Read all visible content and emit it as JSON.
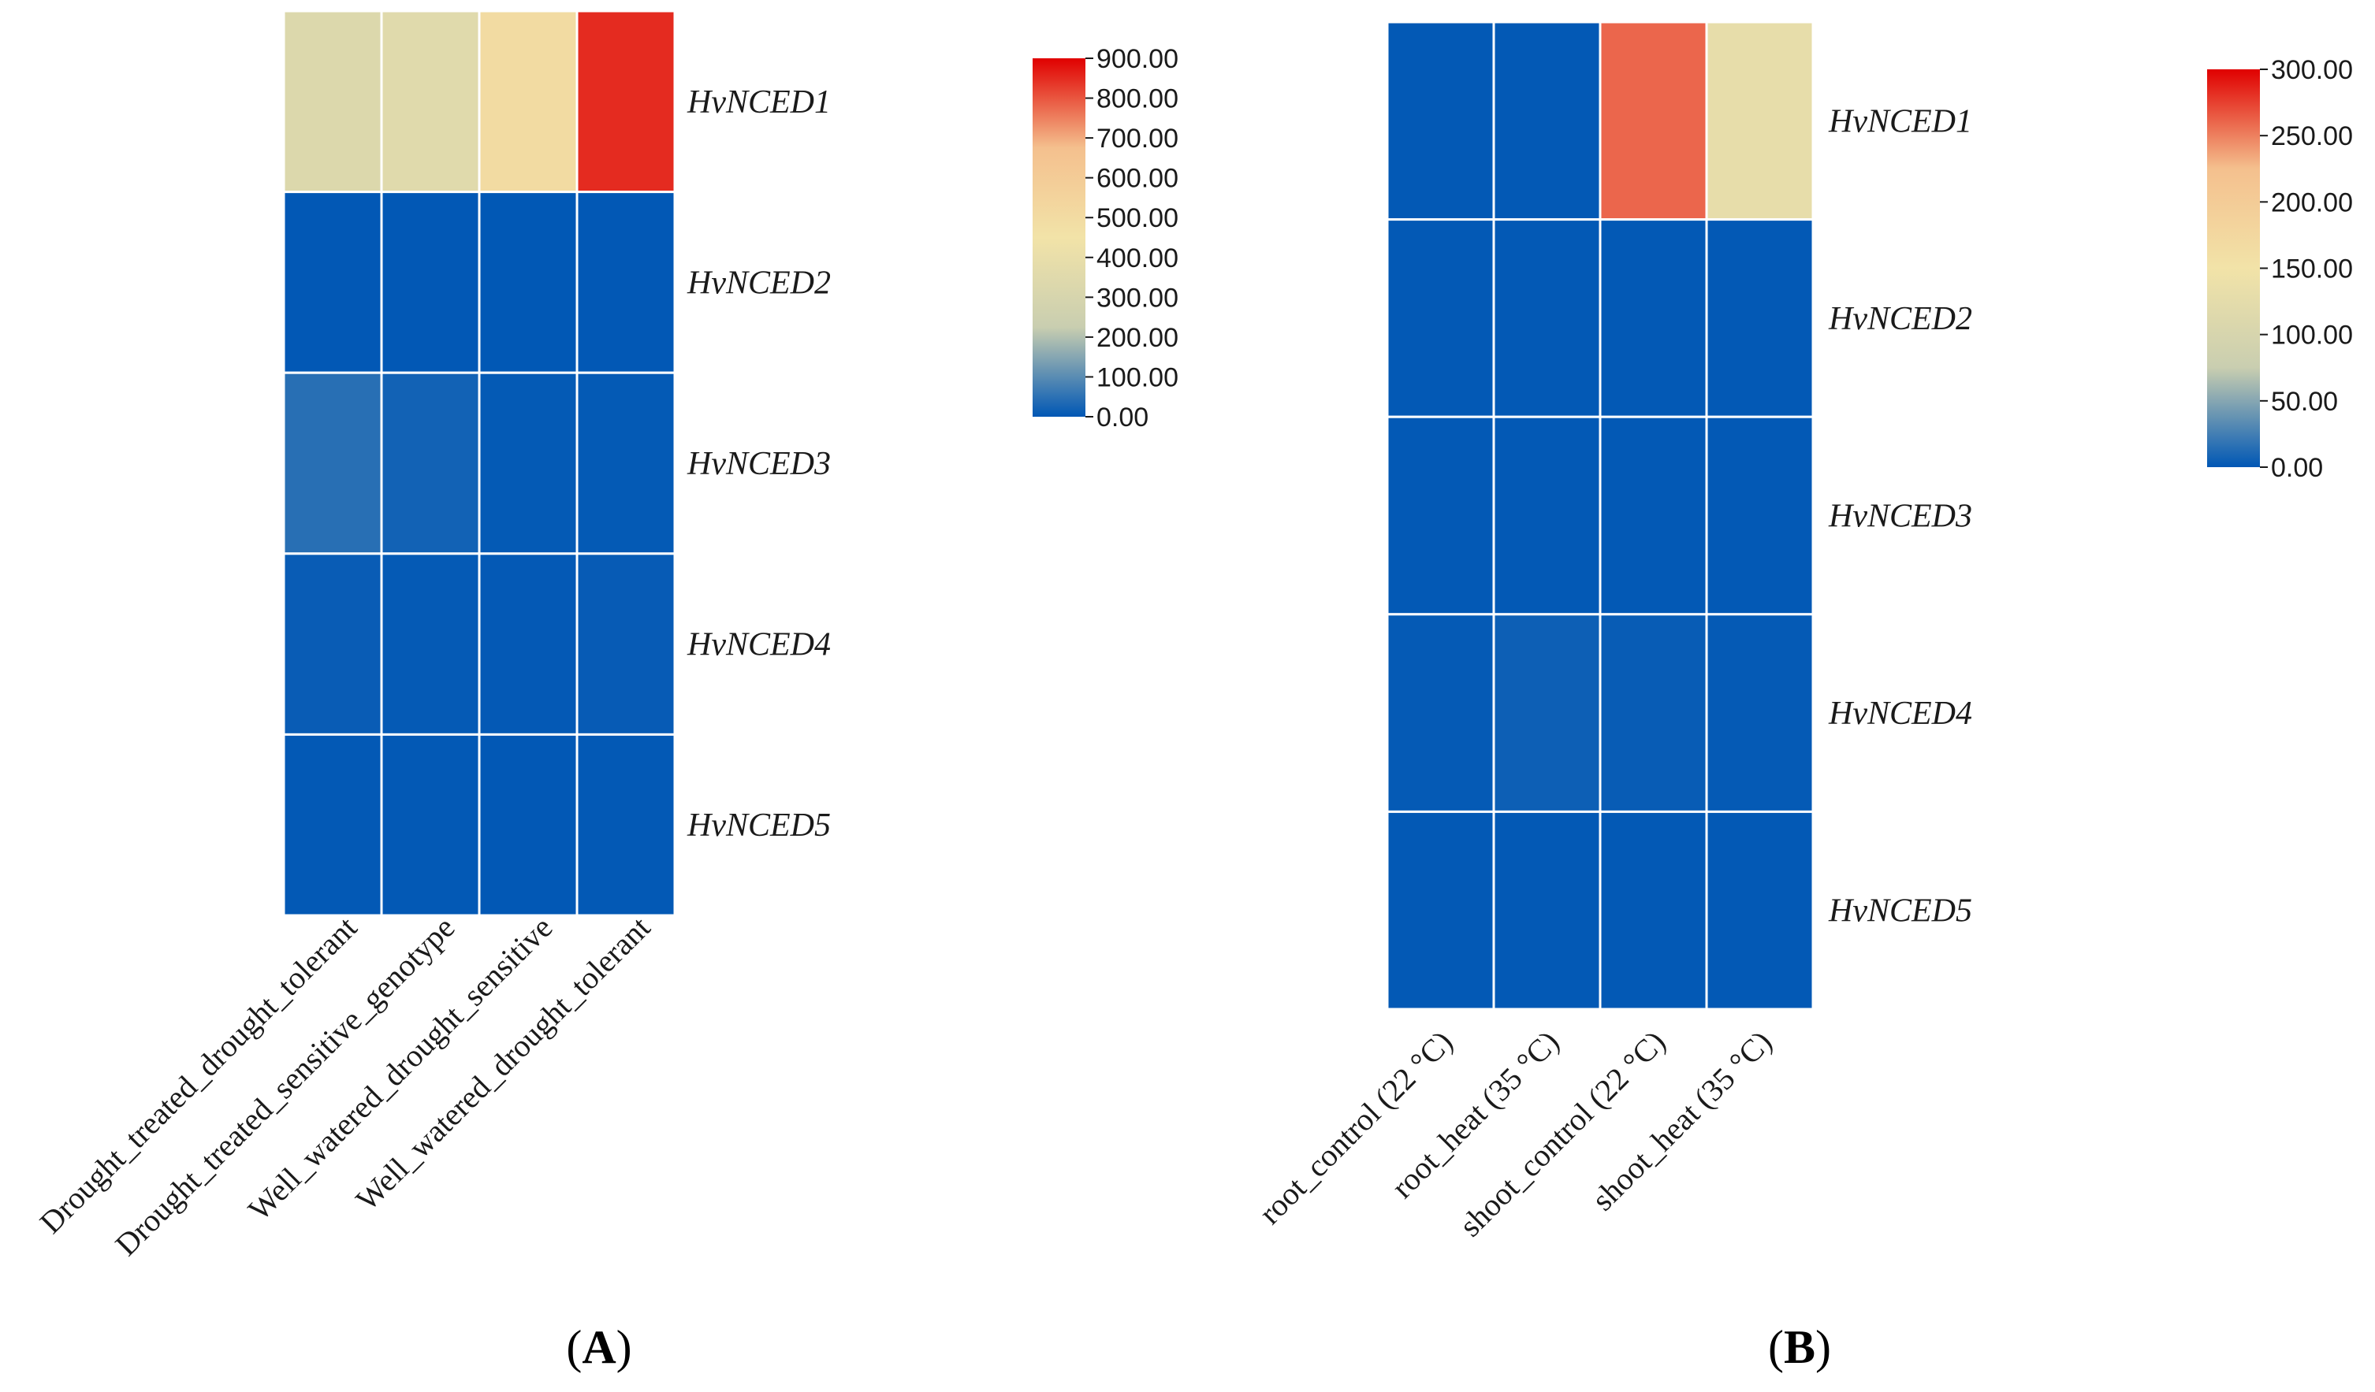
{
  "chart_data": [
    {
      "type": "heatmap",
      "panel_label": {
        "open": "(",
        "letter": "A",
        "close": ")"
      },
      "rows": [
        "HvNCED1",
        "HvNCED2",
        "HvNCED3",
        "HvNCED4",
        "HvNCED5"
      ],
      "columns": [
        "Drought_treated_drought_tolerant",
        "Drought_treated_sensitive_genotype",
        "Well_watered_drought_sensitive",
        "Well_watered_drought_tolerant"
      ],
      "values": [
        [
          330,
          350,
          500,
          850
        ],
        [
          2,
          2,
          1,
          2
        ],
        [
          45,
          20,
          5,
          5
        ],
        [
          10,
          6,
          4,
          8
        ],
        [
          3,
          3,
          2,
          3
        ]
      ],
      "colorbar": {
        "min": 0,
        "max": 900,
        "ticks": [
          "900.00",
          "800.00",
          "700.00",
          "600.00",
          "500.00",
          "400.00",
          "300.00",
          "200.00",
          "100.00",
          "0.00"
        ],
        "colors": [
          "#0057b5",
          "#c9ceb0",
          "#f2e3a8",
          "#f4c08e",
          "#e00000"
        ]
      }
    },
    {
      "type": "heatmap",
      "panel_label": {
        "open": "(",
        "letter": "B",
        "close": ")"
      },
      "rows": [
        "HvNCED1",
        "HvNCED2",
        "HvNCED3",
        "HvNCED4",
        "HvNCED5"
      ],
      "columns": [
        "root_control (22 °C)",
        "root_heat (35 °C)",
        "shoot_control (22 °C)",
        "shoot_heat (35 °C)"
      ],
      "values": [
        [
          1,
          1,
          260,
          130
        ],
        [
          1,
          1,
          1,
          1
        ],
        [
          1,
          1,
          1,
          1
        ],
        [
          2,
          5,
          3,
          2
        ],
        [
          1,
          1,
          1,
          1
        ]
      ],
      "colorbar": {
        "min": 0,
        "max": 300,
        "ticks": [
          "300.00",
          "250.00",
          "200.00",
          "150.00",
          "100.00",
          "50.00",
          "0.00"
        ],
        "colors": [
          "#0057b5",
          "#c9ceb0",
          "#f2e3a8",
          "#f4c08e",
          "#e00000"
        ]
      }
    }
  ]
}
